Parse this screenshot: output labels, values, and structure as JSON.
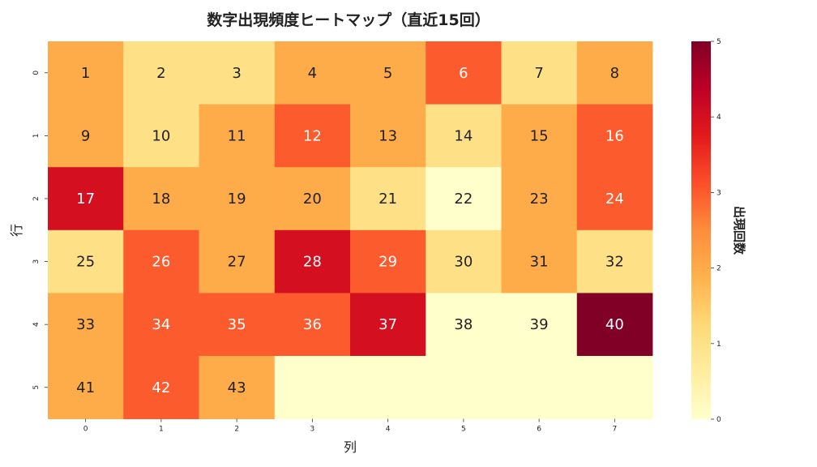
{
  "chart_data": {
    "type": "heatmap",
    "title": "数字出現頻度ヒートマップ（直近15回）",
    "xlabel": "列",
    "ylabel": "行",
    "x_ticks": [
      "0",
      "1",
      "2",
      "3",
      "4",
      "5",
      "6",
      "7"
    ],
    "y_ticks": [
      "0",
      "1",
      "2",
      "3",
      "4",
      "5"
    ],
    "colorbar": {
      "label": "出現回数",
      "range": [
        0,
        5
      ],
      "ticks": [
        "0",
        "1",
        "2",
        "3",
        "4",
        "5"
      ],
      "colormap": "YlOrRd"
    },
    "cell_labels": [
      [
        "1",
        "2",
        "3",
        "4",
        "5",
        "6",
        "7",
        "8"
      ],
      [
        "9",
        "10",
        "11",
        "12",
        "13",
        "14",
        "15",
        "16"
      ],
      [
        "17",
        "18",
        "19",
        "20",
        "21",
        "22",
        "23",
        "24"
      ],
      [
        "25",
        "26",
        "27",
        "28",
        "29",
        "30",
        "31",
        "32"
      ],
      [
        "33",
        "34",
        "35",
        "36",
        "37",
        "38",
        "39",
        "40"
      ],
      [
        "41",
        "42",
        "43",
        "",
        "",
        "",
        "",
        ""
      ]
    ],
    "values": [
      [
        2,
        1,
        1,
        2,
        2,
        3,
        1,
        2
      ],
      [
        2,
        1,
        2,
        3,
        2,
        1,
        2,
        3
      ],
      [
        4,
        2,
        2,
        2,
        1,
        0,
        2,
        3
      ],
      [
        1,
        3,
        2,
        4,
        3,
        1,
        2,
        1
      ],
      [
        2,
        3,
        3,
        3,
        4,
        0,
        0,
        5
      ],
      [
        2,
        3,
        2,
        0,
        0,
        0,
        0,
        0
      ]
    ]
  }
}
